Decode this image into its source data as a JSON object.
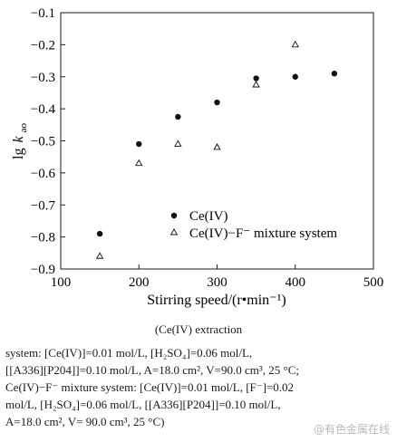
{
  "chart_data": {
    "type": "scatter",
    "xlabel": "Stirring speed/(r•min⁻¹)",
    "ylabel_main": "lg",
    "ylabel_k": "k",
    "ylabel_sub": "ao",
    "xlim": [
      100,
      500
    ],
    "ylim": [
      -0.9,
      -0.1
    ],
    "xticks": [
      100,
      200,
      300,
      400,
      500
    ],
    "xtick_labels": [
      "100",
      "200",
      "300",
      "400",
      "500"
    ],
    "yticks": [
      -0.1,
      -0.2,
      -0.3,
      -0.4,
      -0.5,
      -0.6,
      -0.7,
      -0.8,
      -0.9
    ],
    "ytick_labels": [
      "−0.1",
      "−0.2",
      "−0.3",
      "−0.4",
      "−0.5",
      "−0.6",
      "−0.7",
      "−0.8",
      "−0.9"
    ],
    "grid": false,
    "legend_position": "lower-right",
    "series": [
      {
        "name": "Ce(IV)",
        "marker": "filled-circle",
        "x": [
          150,
          200,
          250,
          300,
          350,
          400,
          450
        ],
        "y": [
          -0.79,
          -0.51,
          -0.425,
          -0.38,
          -0.305,
          -0.3,
          -0.29
        ]
      },
      {
        "name": "Ce(IV)−F⁻ mixture system",
        "marker": "open-triangle",
        "x": [
          150,
          200,
          250,
          300,
          350,
          400
        ],
        "y": [
          -0.86,
          -0.57,
          -0.51,
          -0.52,
          -0.325,
          -0.2
        ]
      }
    ]
  },
  "caption": {
    "title": "(Ce(IV) extraction",
    "line1": "system:   [Ce(IV)]=0.01   mol/L,   [H₂SO₄]=0.06   mol/L,",
    "line2": "[[A336][P204]]=0.10 mol/L, A=18.0 cm², V=90.0 cm³, 25 °C;",
    "line3": "Ce(IV)−F⁻  mixture  system: [Ce(IV)]=0.01  mol/L, [F⁻]=0.02",
    "line4": "mol/L,   [H₂SO₄]=0.06   mol/L,   [[A336][P204]]=0.10   mol/L,",
    "line5": "A=18.0 cm², V= 90.0 cm³, 25 °C)"
  },
  "watermark": "@有色金属在线"
}
